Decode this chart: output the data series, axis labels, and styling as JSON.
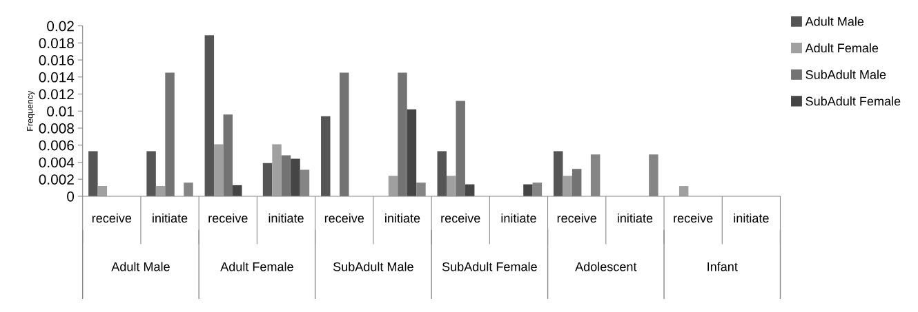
{
  "chart_data": {
    "type": "bar",
    "ylabel": "Frequency",
    "categories": [
      "receive",
      "initiate",
      "receive",
      "initiate",
      "receive",
      "initiate",
      "receive",
      "initiate",
      "receive",
      "initiate",
      "receive",
      "initiate"
    ],
    "annotations": [
      "Adult Male",
      "Adult Female",
      "SubAdult Male",
      "SubAdult Female",
      "Adolescent",
      "Infant"
    ],
    "series": [
      {
        "name": "Adult Male",
        "color": "#555555",
        "values": [
          0.0053,
          0.0053,
          0.0189,
          0.0039,
          0.0094,
          0,
          0.0053,
          0,
          0.0053,
          0,
          0,
          0
        ]
      },
      {
        "name": "Adult Female",
        "color": "#a0a0a0",
        "values": [
          0.0012,
          0.0012,
          0.0061,
          0.0061,
          0,
          0.0024,
          0.0024,
          0,
          0.0024,
          0,
          0.0012,
          0
        ]
      },
      {
        "name": "SubAdult Male",
        "color": "#737373",
        "values": [
          0,
          0.0145,
          0.0096,
          0.0048,
          0.0145,
          0.0145,
          0.0112,
          0,
          0.0032,
          0,
          0,
          0
        ]
      },
      {
        "name": "SubAdult Female",
        "color": "#454545",
        "values": [
          0,
          0,
          0.0013,
          0.0044,
          0,
          0.0102,
          0.0014,
          0.0014,
          0,
          0,
          0,
          0
        ]
      },
      {
        "color": "#858585",
        "values": [
          0,
          0.0016,
          0,
          0.0031,
          0,
          0.0016,
          0,
          0.0016,
          0.0049,
          0.0049,
          0,
          0
        ]
      }
    ],
    "ylim": [
      0,
      0.02
    ],
    "yticks": [
      0,
      0.002,
      0.004,
      0.006,
      0.008,
      0.01,
      0.012,
      0.014,
      0.016,
      0.018,
      0.02
    ],
    "grid": false,
    "legend": "top right"
  }
}
